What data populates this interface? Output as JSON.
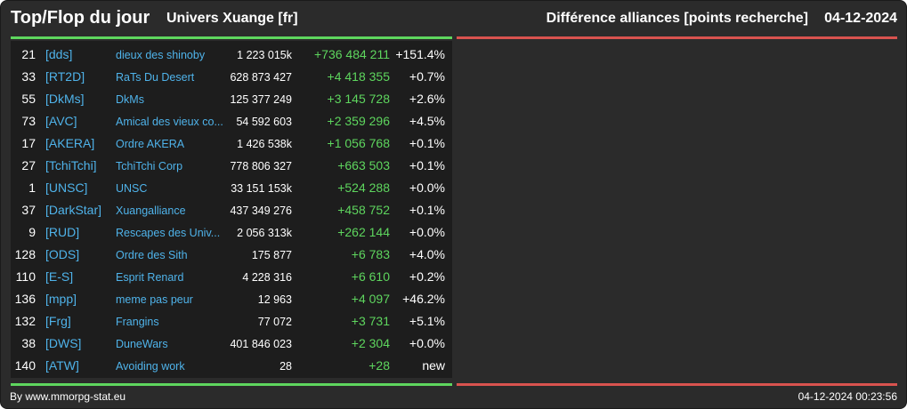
{
  "header": {
    "title": "Top/Flop du jour",
    "universe": "Univers Xuange [fr]",
    "metric": "Différence alliances [points recherche]",
    "date": "04-12-2024"
  },
  "colors": {
    "background": "#2b2b2b",
    "top_accent": "#5ed65e",
    "flop_accent": "#d9534f",
    "tag_color": "#4fb3ea"
  },
  "top_rows": [
    {
      "rank": "21",
      "tag": "[dds]",
      "name": "dieux des shinoby",
      "points": "1 223 015k",
      "diff": "+736 484 211",
      "pct": "+151.4%"
    },
    {
      "rank": "33",
      "tag": "[RT2D]",
      "name": "RaTs Du Desert",
      "points": "628 873 427",
      "diff": "+4 418 355",
      "pct": "+0.7%"
    },
    {
      "rank": "55",
      "tag": "[DkMs]",
      "name": "DkMs",
      "points": "125 377 249",
      "diff": "+3 145 728",
      "pct": "+2.6%"
    },
    {
      "rank": "73",
      "tag": "[AVC]",
      "name": "Amical des vieux co...",
      "points": "54 592 603",
      "diff": "+2 359 296",
      "pct": "+4.5%"
    },
    {
      "rank": "17",
      "tag": "[AKERA]",
      "name": "Ordre AKERA",
      "points": "1 426 538k",
      "diff": "+1 056 768",
      "pct": "+0.1%"
    },
    {
      "rank": "27",
      "tag": "[TchiTchi]",
      "name": "TchiTchi Corp",
      "points": "778 806 327",
      "diff": "+663 503",
      "pct": "+0.1%"
    },
    {
      "rank": "1",
      "tag": "[UNSC]",
      "name": "UNSC",
      "points": "33 151 153k",
      "diff": "+524 288",
      "pct": "+0.0%"
    },
    {
      "rank": "37",
      "tag": "[DarkStar]",
      "name": "Xuangalliance",
      "points": "437 349 276",
      "diff": "+458 752",
      "pct": "+0.1%"
    },
    {
      "rank": "9",
      "tag": "[RUD]",
      "name": "Rescapes des Univ...",
      "points": "2 056 313k",
      "diff": "+262 144",
      "pct": "+0.0%"
    },
    {
      "rank": "128",
      "tag": "[ODS]",
      "name": "Ordre des Sith",
      "points": "175 877",
      "diff": "+6 783",
      "pct": "+4.0%"
    },
    {
      "rank": "110",
      "tag": "[E-S]",
      "name": "Esprit Renard",
      "points": "4 228 316",
      "diff": "+6 610",
      "pct": "+0.2%"
    },
    {
      "rank": "136",
      "tag": "[mpp]",
      "name": "meme pas peur",
      "points": "12 963",
      "diff": "+4 097",
      "pct": "+46.2%"
    },
    {
      "rank": "132",
      "tag": "[Frg]",
      "name": "Frangins",
      "points": "77 072",
      "diff": "+3 731",
      "pct": "+5.1%"
    },
    {
      "rank": "38",
      "tag": "[DWS]",
      "name": "DuneWars",
      "points": "401 846 023",
      "diff": "+2 304",
      "pct": "+0.0%"
    },
    {
      "rank": "140",
      "tag": "[ATW]",
      "name": "Avoiding work",
      "points": "28",
      "diff": "+28",
      "pct": "new"
    }
  ],
  "footer": {
    "credit": "By www.mmorpg-stat.eu",
    "timestamp": "04-12-2024 00:23:56"
  }
}
